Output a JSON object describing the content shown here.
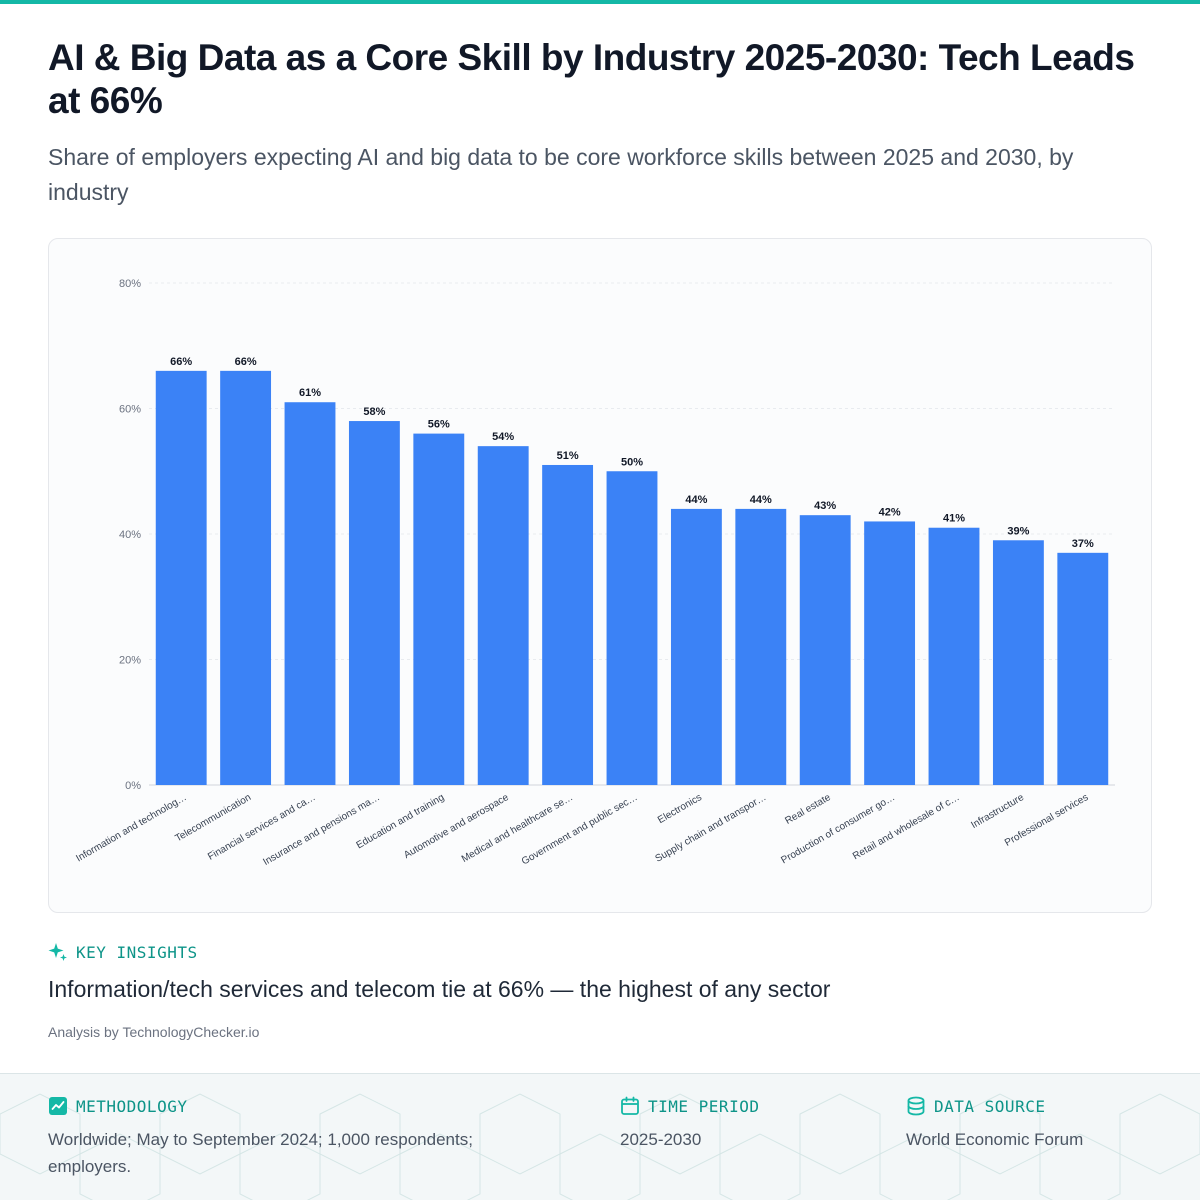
{
  "header": {
    "title": "AI & Big Data as a Core Skill by Industry 2025-2030: Tech Leads at 66%",
    "subtitle": "Share of employers expecting AI and big data to be core workforce skills between 2025 and 2030, by industry"
  },
  "chart_data": {
    "type": "bar",
    "categories": [
      "Information and technolog…",
      "Telecommunication",
      "Financial services and ca…",
      "Insurance and pensions ma…",
      "Education and training",
      "Automotive and aerospace",
      "Medical and healthcare se…",
      "Government and public sec…",
      "Electronics",
      "Supply chain and transpor…",
      "Real estate",
      "Production of consumer go…",
      "Retail and wholesale of c…",
      "Infrastructure",
      "Professional services"
    ],
    "values": [
      66,
      66,
      61,
      58,
      56,
      54,
      51,
      50,
      44,
      44,
      43,
      42,
      41,
      39,
      37
    ],
    "data_labels": [
      "66%",
      "66%",
      "61%",
      "58%",
      "56%",
      "54%",
      "51%",
      "50%",
      "44%",
      "44%",
      "43%",
      "42%",
      "41%",
      "39%",
      "37%"
    ],
    "yticks": [
      0,
      20,
      40,
      60,
      80
    ],
    "ytick_labels": [
      "0%",
      "20%",
      "40%",
      "60%",
      "80%"
    ],
    "ylim": [
      0,
      80
    ],
    "grid": true,
    "bar_color": "#3b82f6"
  },
  "insights": {
    "label": "KEY INSIGHTS",
    "icon": "sparkle-icon",
    "text": "Information/tech services and telecom tie at 66% — the highest of any sector"
  },
  "attribution": "Analysis by TechnologyChecker.io",
  "footer": {
    "methodology": {
      "label": "METHODOLOGY",
      "icon": "trend-chart-icon",
      "value": "Worldwide; May to September 2024; 1,000 respondents; employers."
    },
    "time_period": {
      "label": "TIME PERIOD",
      "icon": "calendar-icon",
      "value": "2025-2030"
    },
    "data_source": {
      "label": "DATA SOURCE",
      "icon": "database-icon",
      "value": "World Economic Forum"
    }
  },
  "colors": {
    "accent": "#14b8a6",
    "accent_text": "#0d9488",
    "bar": "#3b82f6"
  }
}
